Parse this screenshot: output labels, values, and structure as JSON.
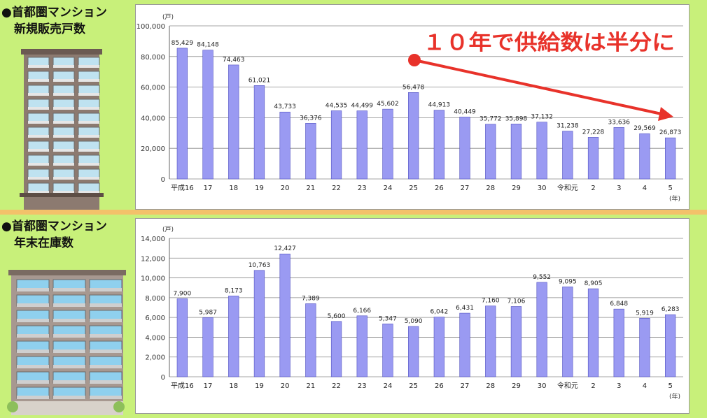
{
  "sections": [
    {
      "title_line1": "●首都圏マンション",
      "title_line2": "新規販売戸数"
    },
    {
      "title_line1": "●首都圏マンション",
      "title_line2": "年末在庫数"
    }
  ],
  "annotation": {
    "text": "１０年で供給数は半分に",
    "color": "#e8322a"
  },
  "chart_data": [
    {
      "type": "bar",
      "unit_label": "(戸)",
      "x_unit_label": "(年)",
      "categories": [
        "平成16",
        "17",
        "18",
        "19",
        "20",
        "21",
        "22",
        "23",
        "24",
        "25",
        "26",
        "27",
        "28",
        "29",
        "30",
        "令和元",
        "2",
        "3",
        "4",
        "5"
      ],
      "values": [
        85429,
        84148,
        74463,
        61021,
        43733,
        36376,
        44535,
        44499,
        45602,
        56478,
        44913,
        40449,
        35772,
        35898,
        37132,
        31238,
        27228,
        33636,
        29569,
        26873
      ],
      "value_labels": [
        "85,429",
        "84,148",
        "74,463",
        "61,021",
        "43,733",
        "36,376",
        "44,535",
        "44,499",
        "45,602",
        "56,478",
        "44,913",
        "40,449",
        "35,772",
        "35,898",
        "37,132",
        "31,238",
        "27,228",
        "33,636",
        "29,569",
        "26,873"
      ],
      "ylim": [
        0,
        100000
      ],
      "yticks": [
        "0",
        "20,000",
        "40,000",
        "60,000",
        "80,000",
        "100,000"
      ],
      "bar_color": "#9a9af2",
      "grid": true
    },
    {
      "type": "bar",
      "unit_label": "(戸)",
      "x_unit_label": "(年)",
      "categories": [
        "平成16",
        "17",
        "18",
        "19",
        "20",
        "21",
        "22",
        "23",
        "24",
        "25",
        "26",
        "27",
        "28",
        "29",
        "30",
        "令和元",
        "2",
        "3",
        "4",
        "5"
      ],
      "values": [
        7900,
        5987,
        8173,
        10763,
        12427,
        7389,
        5600,
        6166,
        5347,
        5090,
        6042,
        6431,
        7160,
        7106,
        9552,
        9095,
        8905,
        6848,
        5919,
        6283
      ],
      "value_labels": [
        "7,900",
        "5,987",
        "8,173",
        "10,763",
        "12,427",
        "7,389",
        "5,600",
        "6,166",
        "5,347",
        "5,090",
        "6,042",
        "6,431",
        "7,160",
        "7,106",
        "9,552",
        "9,095",
        "8,905",
        "6,848",
        "5,919",
        "6,283"
      ],
      "ylim": [
        0,
        14000
      ],
      "yticks": [
        "0",
        "2,000",
        "4,000",
        "6,000",
        "8,000",
        "10,000",
        "12,000",
        "14,000"
      ],
      "bar_color": "#9a9af2",
      "grid": true
    }
  ]
}
